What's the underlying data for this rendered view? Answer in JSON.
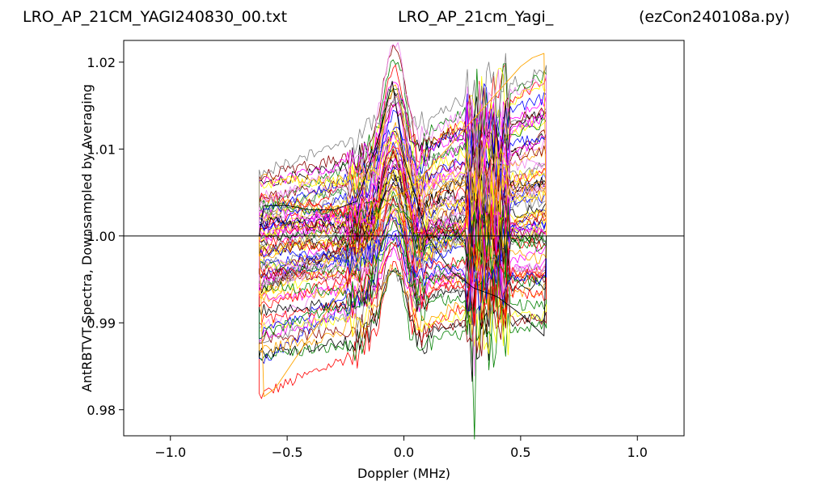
{
  "header": {
    "left": "LRO_AP_21CM_YAGI240830_00.txt",
    "center": "LRO_AP_21cm_Yagi_",
    "right": "(ezCon240108a.py)"
  },
  "chart_data": {
    "type": "line",
    "title": "",
    "xlabel": "Doppler (MHz)",
    "ylabel": "AntRBTVT Spectra, Downsampled by Averaging",
    "xlim": [
      -1.2,
      1.2
    ],
    "ylim": [
      0.977,
      1.0225
    ],
    "xticks": [
      {
        "value": -1.0,
        "label": "−1.0"
      },
      {
        "value": -0.5,
        "label": "−0.5"
      },
      {
        "value": 0.0,
        "label": "0.0"
      },
      {
        "value": 0.5,
        "label": "0.5"
      },
      {
        "value": 1.0,
        "label": "1.0"
      }
    ],
    "yticks": [
      {
        "value": 0.98,
        "label": "0.98"
      },
      {
        "value": 0.99,
        "label": "0.99"
      },
      {
        "value": 1.0,
        "label": "1.00"
      },
      {
        "value": 1.01,
        "label": "1.01"
      },
      {
        "value": 1.02,
        "label": "1.02"
      }
    ],
    "reference_line": {
      "y": 1.0,
      "x": [
        -1.2,
        1.2
      ]
    },
    "grid": false,
    "legend": "none",
    "spectra": {
      "count": 80,
      "x_range": [
        -0.62,
        0.61
      ],
      "start_range": [
        0.981,
        1.0055
      ],
      "end_range": [
        0.989,
        1.021
      ],
      "colors": [
        "#ff0000",
        "#0000ff",
        "#008000",
        "#000000",
        "#ffa500",
        "#8b0000",
        "#ff00ff",
        "#ffff00",
        "#808080",
        "#ee82ee"
      ]
    },
    "series": [
      {
        "x": [
          -0.62,
          -0.6,
          -0.55,
          -0.5,
          -0.45,
          -0.4,
          -0.35,
          -0.3,
          -0.25,
          -0.2,
          -0.15,
          -0.1,
          -0.05,
          0.0,
          0.05,
          0.1,
          0.15,
          0.2,
          0.25,
          0.3,
          0.35,
          0.4,
          0.45,
          0.5,
          0.55,
          0.6,
          0.61
        ],
        "y": [
          1.0,
          0.9815,
          0.9825,
          0.9845,
          0.9865,
          0.9885,
          0.9905,
          0.9925,
          0.9945,
          0.997,
          0.9995,
          1.003,
          1.0045,
          1.005,
          1.006,
          1.0075,
          1.009,
          1.0105,
          1.012,
          1.0135,
          1.015,
          1.0165,
          1.018,
          1.0195,
          1.0205,
          1.021,
          1.0
        ]
      },
      {
        "x": [
          -0.62,
          -0.6,
          -0.5,
          -0.4,
          -0.3,
          -0.2,
          -0.1,
          -0.05,
          0.0,
          0.1,
          0.2,
          0.3,
          0.4,
          0.5,
          0.6,
          0.61
        ],
        "y": [
          1.0,
          1.0035,
          1.0035,
          1.003,
          1.003,
          1.004,
          1.012,
          1.0178,
          1.009,
          1.0,
          0.996,
          0.994,
          0.993,
          0.991,
          0.9885,
          1.0
        ]
      }
    ]
  }
}
